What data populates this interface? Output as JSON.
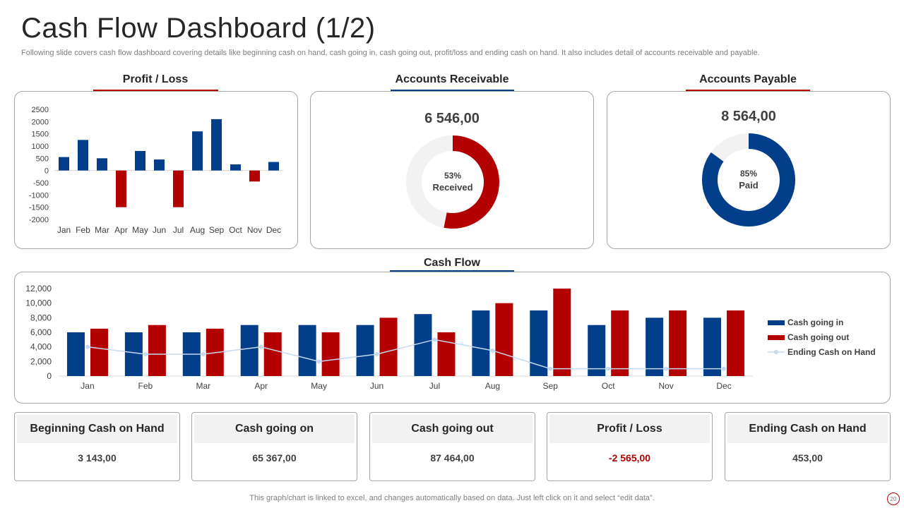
{
  "header": {
    "title": "Cash Flow Dashboard (1/2)",
    "subtitle": "Following slide covers cash flow dashboard covering details like beginning cash on hand, cash going in, cash going out, profit/loss and ending cash on hand. It also includes detail of accounts receivable and payable."
  },
  "colors": {
    "blue": "#023E8A",
    "red": "#B30000",
    "light_blue": "#C5D9F1",
    "grey": "#F2F2F2"
  },
  "profit_loss": {
    "title": "Profit / Loss"
  },
  "accounts_receivable": {
    "title": "Accounts Receivable",
    "value": "6 546,00",
    "pct_label": "53%",
    "status_label": "Received"
  },
  "accounts_payable": {
    "title": "Accounts Payable",
    "value": "8 564,00",
    "pct_label": "85%",
    "status_label": "Paid"
  },
  "cash_flow": {
    "title": "Cash Flow"
  },
  "cards": [
    {
      "label": "Beginning Cash on Hand",
      "value": "3 143,00"
    },
    {
      "label": "Cash going on",
      "value": "65 367,00"
    },
    {
      "label": "Cash going out",
      "value": "87 464,00"
    },
    {
      "label": "Profit / Loss",
      "value": "-2 565,00"
    },
    {
      "label": "Ending Cash on Hand",
      "value": "453,00"
    }
  ],
  "footer": {
    "note": "This graph/chart is linked to excel,  and changes automatically based on data. Just left click on it and select “edit data”.",
    "page": "20"
  },
  "chart_data": [
    {
      "type": "bar",
      "title": "Profit / Loss",
      "categories": [
        "Jan",
        "Feb",
        "Mar",
        "Apr",
        "May",
        "Jun",
        "Jul",
        "Aug",
        "Sep",
        "Oct",
        "Nov",
        "Dec"
      ],
      "values": [
        550,
        1250,
        500,
        -1500,
        800,
        450,
        -1500,
        1600,
        2100,
        250,
        -450,
        350
      ],
      "ylim": [
        -2000,
        2500
      ],
      "yticks": [
        "2500",
        "2000",
        "1500",
        "1000",
        "500",
        "0",
        "-500",
        "-1000",
        "-1500",
        "-2000"
      ],
      "grid": false
    },
    {
      "type": "pie",
      "title": "Accounts Receivable",
      "values": [
        53,
        47
      ],
      "labels": [
        "Received",
        ""
      ]
    },
    {
      "type": "pie",
      "title": "Accounts Payable",
      "values": [
        85,
        15
      ],
      "labels": [
        "Paid",
        ""
      ]
    },
    {
      "type": "bar",
      "title": "Cash Flow",
      "categories": [
        "Jan",
        "Feb",
        "Mar",
        "Apr",
        "May",
        "Jun",
        "Jul",
        "Aug",
        "Sep",
        "Oct",
        "Nov",
        "Dec"
      ],
      "series": [
        {
          "name": "Cash going in",
          "values": [
            6000,
            6000,
            6000,
            7000,
            7000,
            7000,
            8500,
            9000,
            9000,
            7000,
            8000,
            8000
          ]
        },
        {
          "name": "Cash going out",
          "values": [
            6500,
            7000,
            6500,
            6000,
            6000,
            8000,
            6000,
            10000,
            12000,
            9000,
            9000,
            9000
          ]
        },
        {
          "name": "Ending Cash on Hand",
          "type": "line",
          "values": [
            4000,
            3000,
            3000,
            4000,
            2000,
            3000,
            5000,
            3500,
            1000,
            1000,
            1000,
            1000
          ]
        }
      ],
      "ylim": [
        0,
        12000
      ],
      "yticks": [
        "12,000",
        "10,000",
        "8,000",
        "6,000",
        "4,000",
        "2,000",
        "0"
      ],
      "legend": "right",
      "grid": false
    }
  ]
}
